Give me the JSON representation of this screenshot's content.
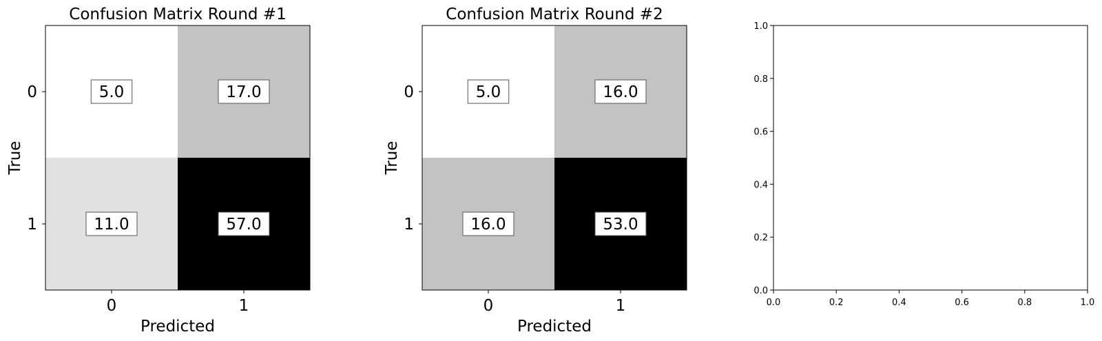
{
  "chart_data": [
    {
      "type": "heatmap",
      "title": "Confusion Matrix Round #1",
      "xlabel": "Predicted",
      "ylabel": "True",
      "x_categories": [
        "0",
        "1"
      ],
      "y_categories": [
        "0",
        "1"
      ],
      "values": [
        [
          5.0,
          17.0
        ],
        [
          11.0,
          57.0
        ]
      ],
      "value_labels": [
        [
          "5.0",
          "17.0"
        ],
        [
          "11.0",
          "57.0"
        ]
      ],
      "colormap": "Greys",
      "cell_colors": [
        [
          "#ffffff",
          "#c3c3c3"
        ],
        [
          "#e1e1e1",
          "#000000"
        ]
      ]
    },
    {
      "type": "heatmap",
      "title": "Confusion Matrix Round #2",
      "xlabel": "Predicted",
      "ylabel": "True",
      "x_categories": [
        "0",
        "1"
      ],
      "y_categories": [
        "0",
        "1"
      ],
      "values": [
        [
          5.0,
          16.0
        ],
        [
          16.0,
          53.0
        ]
      ],
      "value_labels": [
        [
          "5.0",
          "16.0"
        ],
        [
          "16.0",
          "53.0"
        ]
      ],
      "colormap": "Greys",
      "cell_colors": [
        [
          "#ffffff",
          "#c3c3c3"
        ],
        [
          "#c3c3c3",
          "#000000"
        ]
      ]
    },
    {
      "type": "scatter",
      "title": "",
      "xlabel": "",
      "ylabel": "",
      "xlim": [
        0.0,
        1.0
      ],
      "ylim": [
        0.0,
        1.0
      ],
      "x_ticks": [
        "0.0",
        "0.2",
        "0.4",
        "0.6",
        "0.8",
        "1.0"
      ],
      "y_ticks": [
        "0.0",
        "0.2",
        "0.4",
        "0.6",
        "0.8",
        "1.0"
      ],
      "series": []
    }
  ]
}
